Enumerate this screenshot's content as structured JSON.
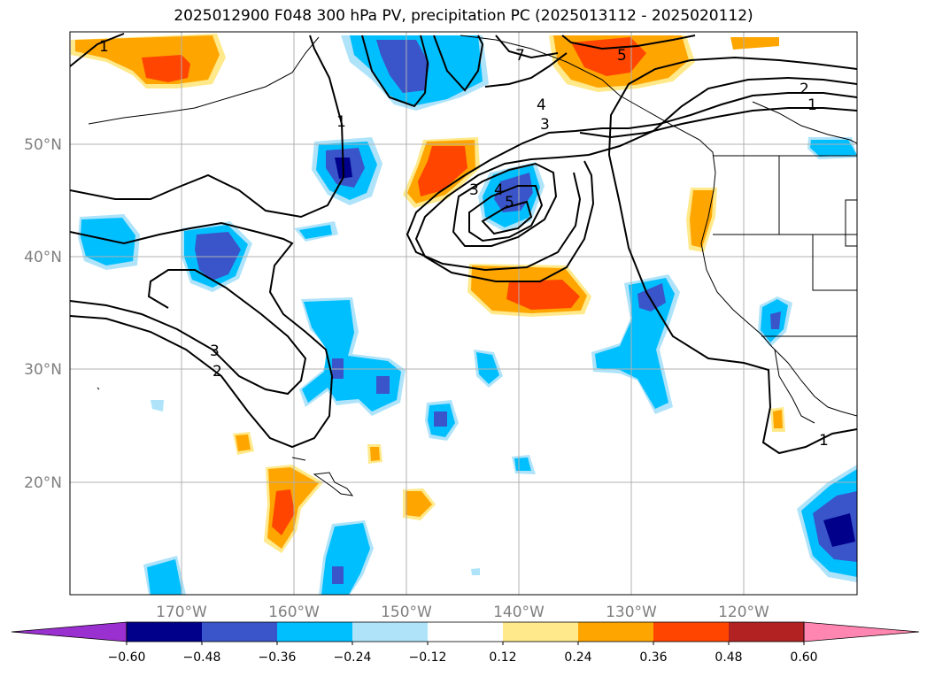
{
  "title": "2025012900 F048 300 hPa PV, precipitation PC (2025013112 - 2025020112)",
  "lat_labels": [
    "50°N",
    "40°N",
    "30°N",
    "20°N"
  ],
  "lon_labels": [
    "170°W",
    "160°W",
    "150°W",
    "140°W",
    "130°W",
    "120°W"
  ],
  "colorbar": {
    "tick_labels": [
      "−0.60",
      "−0.48",
      "−0.36",
      "−0.24",
      "−0.12",
      "0.12",
      "0.24",
      "0.36",
      "0.48",
      "0.60"
    ],
    "colors": [
      "#9b30d0",
      "#00008b",
      "#3a55c9",
      "#00bfff",
      "#aee3fa",
      "#ffffff",
      "#ffe98a",
      "#ffa500",
      "#ff4500",
      "#b22222",
      "#ff86b0"
    ]
  },
  "pv_contour_labels": [
    "1",
    "7",
    "5",
    "2",
    "1",
    "4",
    "3",
    "1",
    "3",
    "4",
    "5",
    "3",
    "2",
    "1"
  ]
}
